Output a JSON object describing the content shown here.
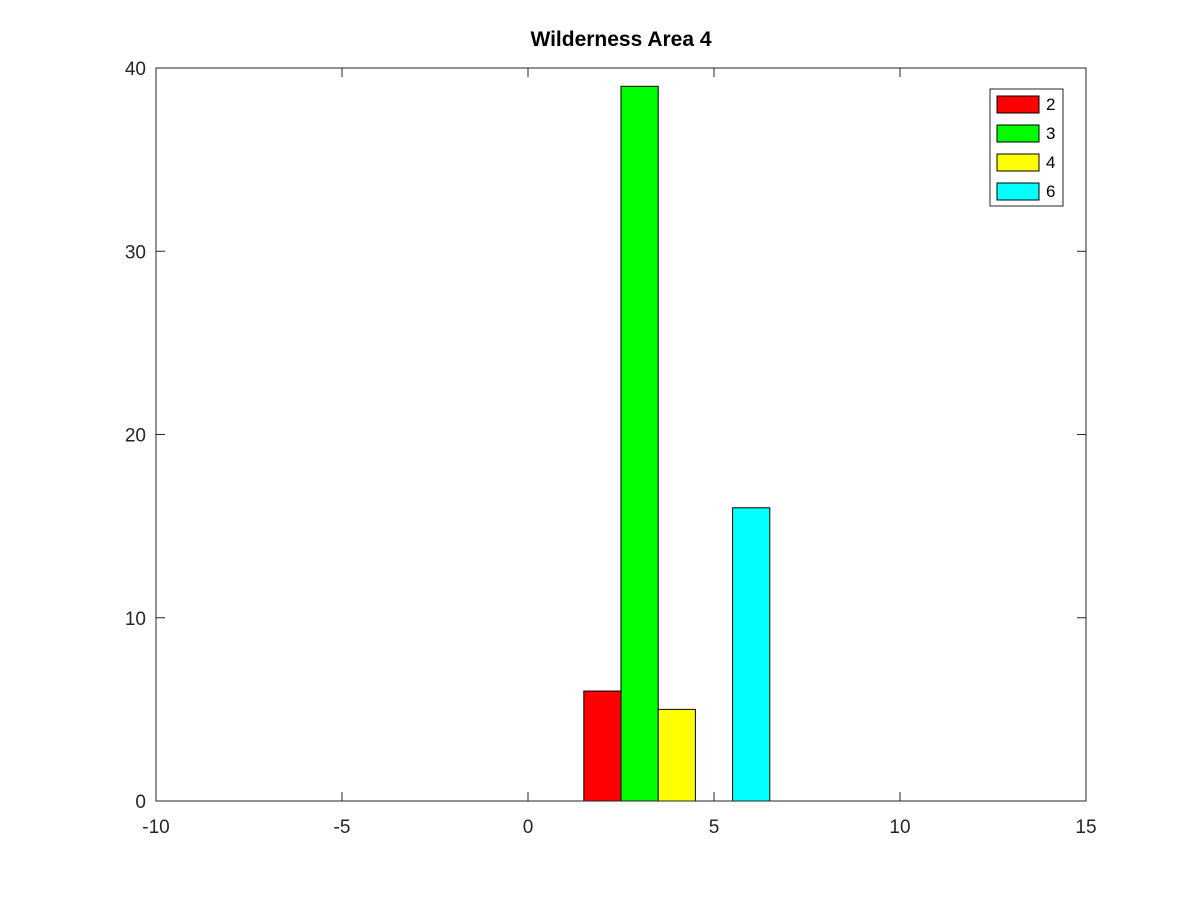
{
  "chart_data": {
    "type": "bar",
    "title": "Wilderness Area 4",
    "xlabel": "",
    "ylabel": "",
    "xlim": [
      -10,
      15
    ],
    "ylim": [
      0,
      40
    ],
    "xticks": [
      -10,
      -5,
      0,
      5,
      10,
      15
    ],
    "yticks": [
      0,
      10,
      20,
      30,
      40
    ],
    "grid": false,
    "legend_position": "top-right",
    "bar_width": 1,
    "series": [
      {
        "name": "2",
        "x": [
          2
        ],
        "values": [
          6
        ],
        "color": "#ff0000"
      },
      {
        "name": "3",
        "x": [
          3
        ],
        "values": [
          39
        ],
        "color": "#00ff00"
      },
      {
        "name": "4",
        "x": [
          4
        ],
        "values": [
          5
        ],
        "color": "#ffff00"
      },
      {
        "name": "6",
        "x": [
          6
        ],
        "values": [
          16
        ],
        "color": "#00ffff"
      }
    ]
  }
}
